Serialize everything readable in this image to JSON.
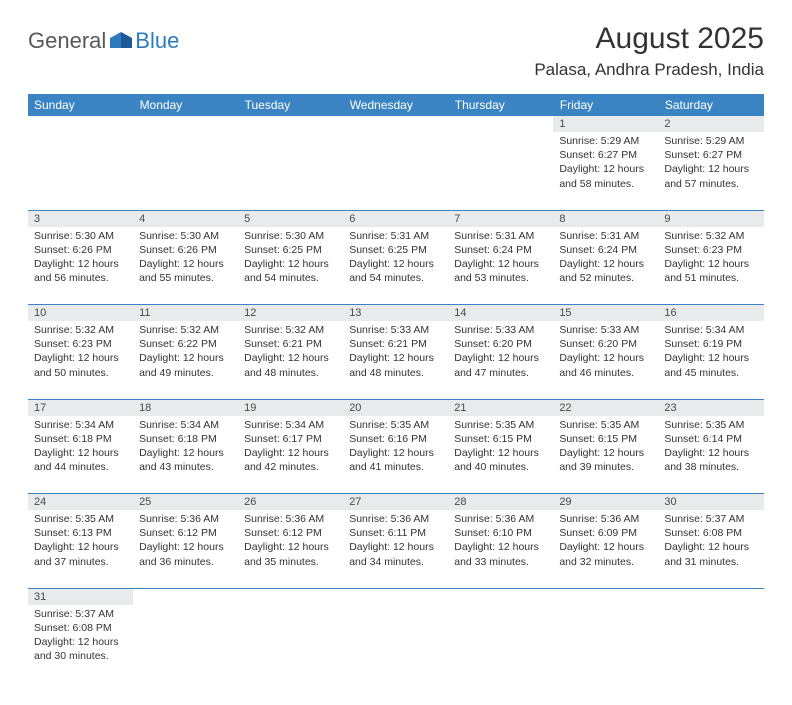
{
  "logo": {
    "general": "General",
    "blue": "Blue"
  },
  "title": "August 2025",
  "location": "Palasa, Andhra Pradesh, India",
  "colors": {
    "header_bg": "#3b84c4",
    "header_text": "#ffffff",
    "daynum_bg": "#e9eaeb",
    "body_text": "#333333",
    "logo_gray": "#58595b",
    "logo_blue": "#2f7bbf",
    "row_divider": "#3b84c4"
  },
  "dayHeaders": [
    "Sunday",
    "Monday",
    "Tuesday",
    "Wednesday",
    "Thursday",
    "Friday",
    "Saturday"
  ],
  "weeks": [
    [
      null,
      null,
      null,
      null,
      null,
      {
        "n": "1",
        "sr": "Sunrise: 5:29 AM",
        "ss": "Sunset: 6:27 PM",
        "dl": "Daylight: 12 hours and 58 minutes."
      },
      {
        "n": "2",
        "sr": "Sunrise: 5:29 AM",
        "ss": "Sunset: 6:27 PM",
        "dl": "Daylight: 12 hours and 57 minutes."
      }
    ],
    [
      {
        "n": "3",
        "sr": "Sunrise: 5:30 AM",
        "ss": "Sunset: 6:26 PM",
        "dl": "Daylight: 12 hours and 56 minutes."
      },
      {
        "n": "4",
        "sr": "Sunrise: 5:30 AM",
        "ss": "Sunset: 6:26 PM",
        "dl": "Daylight: 12 hours and 55 minutes."
      },
      {
        "n": "5",
        "sr": "Sunrise: 5:30 AM",
        "ss": "Sunset: 6:25 PM",
        "dl": "Daylight: 12 hours and 54 minutes."
      },
      {
        "n": "6",
        "sr": "Sunrise: 5:31 AM",
        "ss": "Sunset: 6:25 PM",
        "dl": "Daylight: 12 hours and 54 minutes."
      },
      {
        "n": "7",
        "sr": "Sunrise: 5:31 AM",
        "ss": "Sunset: 6:24 PM",
        "dl": "Daylight: 12 hours and 53 minutes."
      },
      {
        "n": "8",
        "sr": "Sunrise: 5:31 AM",
        "ss": "Sunset: 6:24 PM",
        "dl": "Daylight: 12 hours and 52 minutes."
      },
      {
        "n": "9",
        "sr": "Sunrise: 5:32 AM",
        "ss": "Sunset: 6:23 PM",
        "dl": "Daylight: 12 hours and 51 minutes."
      }
    ],
    [
      {
        "n": "10",
        "sr": "Sunrise: 5:32 AM",
        "ss": "Sunset: 6:23 PM",
        "dl": "Daylight: 12 hours and 50 minutes."
      },
      {
        "n": "11",
        "sr": "Sunrise: 5:32 AM",
        "ss": "Sunset: 6:22 PM",
        "dl": "Daylight: 12 hours and 49 minutes."
      },
      {
        "n": "12",
        "sr": "Sunrise: 5:32 AM",
        "ss": "Sunset: 6:21 PM",
        "dl": "Daylight: 12 hours and 48 minutes."
      },
      {
        "n": "13",
        "sr": "Sunrise: 5:33 AM",
        "ss": "Sunset: 6:21 PM",
        "dl": "Daylight: 12 hours and 48 minutes."
      },
      {
        "n": "14",
        "sr": "Sunrise: 5:33 AM",
        "ss": "Sunset: 6:20 PM",
        "dl": "Daylight: 12 hours and 47 minutes."
      },
      {
        "n": "15",
        "sr": "Sunrise: 5:33 AM",
        "ss": "Sunset: 6:20 PM",
        "dl": "Daylight: 12 hours and 46 minutes."
      },
      {
        "n": "16",
        "sr": "Sunrise: 5:34 AM",
        "ss": "Sunset: 6:19 PM",
        "dl": "Daylight: 12 hours and 45 minutes."
      }
    ],
    [
      {
        "n": "17",
        "sr": "Sunrise: 5:34 AM",
        "ss": "Sunset: 6:18 PM",
        "dl": "Daylight: 12 hours and 44 minutes."
      },
      {
        "n": "18",
        "sr": "Sunrise: 5:34 AM",
        "ss": "Sunset: 6:18 PM",
        "dl": "Daylight: 12 hours and 43 minutes."
      },
      {
        "n": "19",
        "sr": "Sunrise: 5:34 AM",
        "ss": "Sunset: 6:17 PM",
        "dl": "Daylight: 12 hours and 42 minutes."
      },
      {
        "n": "20",
        "sr": "Sunrise: 5:35 AM",
        "ss": "Sunset: 6:16 PM",
        "dl": "Daylight: 12 hours and 41 minutes."
      },
      {
        "n": "21",
        "sr": "Sunrise: 5:35 AM",
        "ss": "Sunset: 6:15 PM",
        "dl": "Daylight: 12 hours and 40 minutes."
      },
      {
        "n": "22",
        "sr": "Sunrise: 5:35 AM",
        "ss": "Sunset: 6:15 PM",
        "dl": "Daylight: 12 hours and 39 minutes."
      },
      {
        "n": "23",
        "sr": "Sunrise: 5:35 AM",
        "ss": "Sunset: 6:14 PM",
        "dl": "Daylight: 12 hours and 38 minutes."
      }
    ],
    [
      {
        "n": "24",
        "sr": "Sunrise: 5:35 AM",
        "ss": "Sunset: 6:13 PM",
        "dl": "Daylight: 12 hours and 37 minutes."
      },
      {
        "n": "25",
        "sr": "Sunrise: 5:36 AM",
        "ss": "Sunset: 6:12 PM",
        "dl": "Daylight: 12 hours and 36 minutes."
      },
      {
        "n": "26",
        "sr": "Sunrise: 5:36 AM",
        "ss": "Sunset: 6:12 PM",
        "dl": "Daylight: 12 hours and 35 minutes."
      },
      {
        "n": "27",
        "sr": "Sunrise: 5:36 AM",
        "ss": "Sunset: 6:11 PM",
        "dl": "Daylight: 12 hours and 34 minutes."
      },
      {
        "n": "28",
        "sr": "Sunrise: 5:36 AM",
        "ss": "Sunset: 6:10 PM",
        "dl": "Daylight: 12 hours and 33 minutes."
      },
      {
        "n": "29",
        "sr": "Sunrise: 5:36 AM",
        "ss": "Sunset: 6:09 PM",
        "dl": "Daylight: 12 hours and 32 minutes."
      },
      {
        "n": "30",
        "sr": "Sunrise: 5:37 AM",
        "ss": "Sunset: 6:08 PM",
        "dl": "Daylight: 12 hours and 31 minutes."
      }
    ],
    [
      {
        "n": "31",
        "sr": "Sunrise: 5:37 AM",
        "ss": "Sunset: 6:08 PM",
        "dl": "Daylight: 12 hours and 30 minutes."
      },
      null,
      null,
      null,
      null,
      null,
      null
    ]
  ]
}
